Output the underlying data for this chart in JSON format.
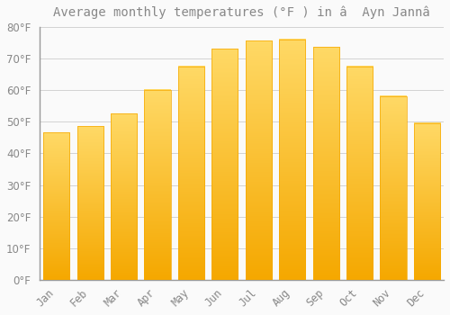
{
  "title": "Average monthly temperatures (°F ) in â  Ayn Jannâ",
  "months": [
    "Jan",
    "Feb",
    "Mar",
    "Apr",
    "May",
    "Jun",
    "Jul",
    "Aug",
    "Sep",
    "Oct",
    "Nov",
    "Dec"
  ],
  "values": [
    46.5,
    48.5,
    52.5,
    60.0,
    67.5,
    73.0,
    75.5,
    76.0,
    73.5,
    67.5,
    58.0,
    49.5
  ],
  "bar_color_top": "#FFD966",
  "bar_color_bottom": "#F5A800",
  "background_color": "#FAFAFA",
  "grid_color": "#CCCCCC",
  "text_color": "#888888",
  "ylim": [
    0,
    80
  ],
  "yticks": [
    0,
    10,
    20,
    30,
    40,
    50,
    60,
    70,
    80
  ],
  "ylabel_suffix": "°F",
  "title_fontsize": 10,
  "tick_fontsize": 8.5
}
